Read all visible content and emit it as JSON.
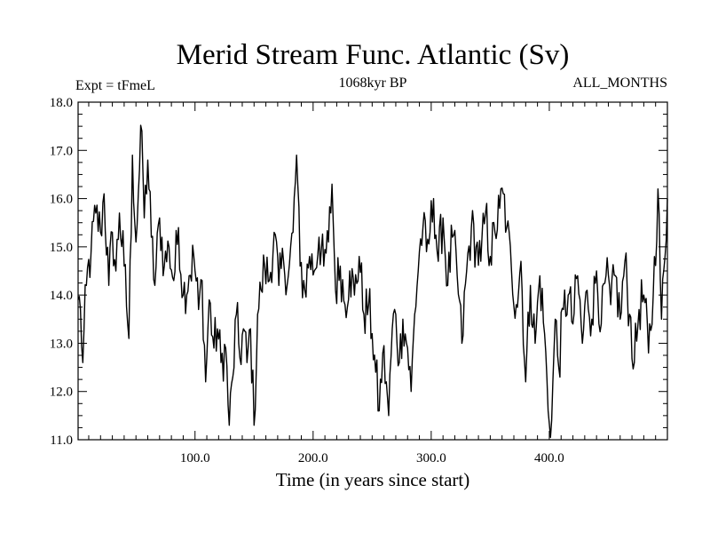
{
  "chart_data": {
    "type": "line",
    "title": "Merid Stream Func. Atlantic (Sv)",
    "subtitle_left": "Expt = tFmeL",
    "subtitle_center": "1068kyr BP",
    "subtitle_right": "ALL_MONTHS",
    "xlabel": "Time (in years since start)",
    "ylabel": "",
    "xlim": [
      1,
      500
    ],
    "ylim": [
      11.0,
      18.0
    ],
    "x_ticks": [
      100,
      200,
      300,
      400
    ],
    "x_tick_labels": [
      "100.0",
      "200.0",
      "300.0",
      "400.0"
    ],
    "y_ticks": [
      11,
      12,
      13,
      14,
      15,
      16,
      17,
      18
    ],
    "y_tick_labels": [
      "11.0",
      "12.0",
      "13.0",
      "14.0",
      "15.0",
      "16.0",
      "17.0",
      "18.0"
    ],
    "line_color": "#000000",
    "series": [
      {
        "name": "Merid Stream Func. Atlantic",
        "x_start": 1,
        "x_step": 1,
        "anchors": [
          [
            1,
            13.9
          ],
          [
            3,
            13.7
          ],
          [
            5,
            12.6
          ],
          [
            8,
            14.2
          ],
          [
            12,
            14.9
          ],
          [
            16,
            15.7
          ],
          [
            20,
            15.3
          ],
          [
            23,
            16.1
          ],
          [
            27,
            14.2
          ],
          [
            30,
            15.3
          ],
          [
            33,
            14.5
          ],
          [
            36,
            15.7
          ],
          [
            40,
            14.6
          ],
          [
            44,
            13.1
          ],
          [
            47,
            16.9
          ],
          [
            50,
            15.1
          ],
          [
            53,
            16.6
          ],
          [
            55,
            17.4
          ],
          [
            57,
            15.6
          ],
          [
            60,
            16.8
          ],
          [
            63,
            15.2
          ],
          [
            66,
            14.2
          ],
          [
            70,
            15.6
          ],
          [
            74,
            14.6
          ],
          [
            78,
            15.0
          ],
          [
            82,
            14.3
          ],
          [
            86,
            15.4
          ],
          [
            90,
            14.0
          ],
          [
            95,
            14.4
          ],
          [
            99,
            14.8
          ],
          [
            103,
            13.7
          ],
          [
            106,
            14.3
          ],
          [
            109,
            12.2
          ],
          [
            112,
            13.9
          ],
          [
            116,
            12.9
          ],
          [
            119,
            13.3
          ],
          [
            122,
            12.6
          ],
          [
            126,
            12.9
          ],
          [
            129,
            11.3
          ],
          [
            132,
            12.3
          ],
          [
            135,
            13.6
          ],
          [
            138,
            12.7
          ],
          [
            141,
            13.3
          ],
          [
            144,
            12.6
          ],
          [
            147,
            13.3
          ],
          [
            150,
            11.3
          ],
          [
            153,
            13.6
          ],
          [
            156,
            14.1
          ],
          [
            159,
            14.6
          ],
          [
            163,
            14.3
          ],
          [
            167,
            15.3
          ],
          [
            171,
            14.2
          ],
          [
            175,
            14.7
          ],
          [
            179,
            14.4
          ],
          [
            183,
            15.3
          ],
          [
            186,
            16.9
          ],
          [
            189,
            14.6
          ],
          [
            193,
            14.1
          ],
          [
            197,
            14.8
          ],
          [
            201,
            14.5
          ],
          [
            205,
            15.2
          ],
          [
            209,
            14.6
          ],
          [
            213,
            15.1
          ],
          [
            216,
            16.3
          ],
          [
            219,
            14.1
          ],
          [
            223,
            14.6
          ],
          [
            227,
            13.8
          ],
          [
            231,
            14.5
          ],
          [
            235,
            14.0
          ],
          [
            239,
            14.8
          ],
          [
            243,
            13.6
          ],
          [
            247,
            13.8
          ],
          [
            250,
            13.2
          ],
          [
            253,
            12.4
          ],
          [
            256,
            11.6
          ],
          [
            259,
            12.8
          ],
          [
            262,
            12.2
          ],
          [
            264,
            11.5
          ],
          [
            267,
            13.3
          ],
          [
            270,
            13.6
          ],
          [
            273,
            12.6
          ],
          [
            276,
            13.5
          ],
          [
            280,
            12.9
          ],
          [
            283,
            12.0
          ],
          [
            286,
            13.6
          ],
          [
            290,
            14.9
          ],
          [
            293,
            15.4
          ],
          [
            296,
            14.9
          ],
          [
            299,
            15.3
          ],
          [
            302,
            16.0
          ],
          [
            306,
            14.7
          ],
          [
            310,
            15.6
          ],
          [
            314,
            14.2
          ],
          [
            318,
            15.2
          ],
          [
            322,
            14.4
          ],
          [
            326,
            13.0
          ],
          [
            330,
            14.5
          ],
          [
            334,
            15.4
          ],
          [
            338,
            15.0
          ],
          [
            342,
            14.7
          ],
          [
            346,
            15.7
          ],
          [
            350,
            14.8
          ],
          [
            354,
            15.3
          ],
          [
            358,
            15.8
          ],
          [
            361,
            16.1
          ],
          [
            364,
            15.4
          ],
          [
            368,
            14.5
          ],
          [
            372,
            13.8
          ],
          [
            376,
            14.7
          ],
          [
            380,
            12.2
          ],
          [
            384,
            14.2
          ],
          [
            388,
            13.0
          ],
          [
            392,
            14.4
          ],
          [
            396,
            13.2
          ],
          [
            399,
            11.6
          ],
          [
            402,
            11.4
          ],
          [
            405,
            13.5
          ],
          [
            408,
            12.5
          ],
          [
            412,
            13.7
          ],
          [
            416,
            14.0
          ],
          [
            420,
            13.4
          ],
          [
            424,
            14.4
          ],
          [
            428,
            13.0
          ],
          [
            432,
            14.1
          ],
          [
            436,
            13.5
          ],
          [
            440,
            14.5
          ],
          [
            444,
            13.4
          ],
          [
            448,
            14.4
          ],
          [
            452,
            13.8
          ],
          [
            456,
            14.4
          ],
          [
            460,
            13.5
          ],
          [
            464,
            14.7
          ],
          [
            468,
            13.6
          ],
          [
            472,
            12.6
          ],
          [
            476,
            13.7
          ],
          [
            480,
            14.0
          ],
          [
            484,
            12.8
          ],
          [
            488,
            14.0
          ],
          [
            492,
            16.2
          ],
          [
            495,
            13.5
          ],
          [
            498,
            14.8
          ],
          [
            500,
            16.0
          ]
        ]
      }
    ]
  }
}
